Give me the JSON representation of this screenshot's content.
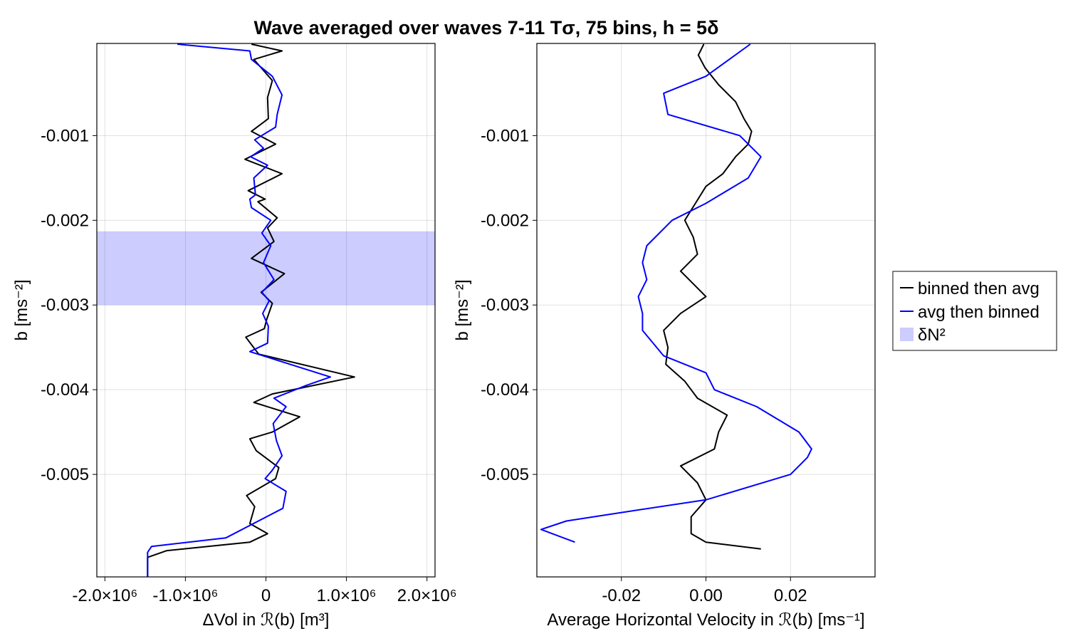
{
  "title": "Wave averaged over waves 7-11 Tσ, 75 bins, h = 5δ",
  "chart_data": [
    {
      "type": "line",
      "xlabel": "ΔVol in ℛ(b) [m³]",
      "ylabel": "b [ms⁻²]",
      "xlim": [
        -2100000,
        2100000
      ],
      "ylim": [
        -0.00621,
        8.8e-05
      ],
      "grid": true,
      "xticks": [
        -2000000,
        -1000000,
        0,
        1000000,
        2000000
      ],
      "xtick_labels": [
        "-2.0×10⁶",
        "-1.0×10⁶",
        "0",
        "1.0×10⁶",
        "2.0×10⁶"
      ],
      "yticks": [
        -0.001,
        -0.002,
        -0.003,
        -0.004,
        -0.005
      ],
      "ytick_labels": [
        "-0.001",
        "-0.002",
        "-0.003",
        "-0.004",
        "-0.005"
      ],
      "band": {
        "label": "δN²",
        "y_from": -0.003,
        "y_to": -0.00213,
        "color": "#ccccff"
      },
      "series": [
        {
          "name": "binned then avg",
          "color": "#000000",
          "points": [
            [
              -180000,
              8e-05
            ],
            [
              200000,
              0.0
            ],
            [
              -150000,
              -0.0001
            ],
            [
              80000,
              -0.00035
            ],
            [
              20000,
              -0.00055
            ],
            [
              30000,
              -0.0008
            ],
            [
              -180000,
              -0.00095
            ],
            [
              120000,
              -0.0011
            ],
            [
              -260000,
              -0.00128
            ],
            [
              200000,
              -0.00145
            ],
            [
              -220000,
              -0.00165
            ],
            [
              -10000,
              -0.00175
            ],
            [
              -100000,
              -0.00178
            ],
            [
              140000,
              -0.00197
            ],
            [
              20000,
              -0.00209
            ],
            [
              100000,
              -0.00225
            ],
            [
              -180000,
              -0.00245
            ],
            [
              230000,
              -0.00263
            ],
            [
              -60000,
              -0.00285
            ],
            [
              80000,
              -0.00298
            ],
            [
              10000,
              -0.00317
            ],
            [
              -20000,
              -0.00328
            ],
            [
              -250000,
              -0.00338
            ],
            [
              -90000,
              -0.00358
            ],
            [
              1100000,
              -0.00385
            ],
            [
              80000,
              -0.00405
            ],
            [
              -150000,
              -0.00415
            ],
            [
              420000,
              -0.00432
            ],
            [
              80000,
              -0.0045
            ],
            [
              -200000,
              -0.00458
            ],
            [
              -120000,
              -0.00472
            ],
            [
              160000,
              -0.00492
            ],
            [
              120000,
              -0.00505
            ],
            [
              -240000,
              -0.00525
            ],
            [
              -140000,
              -0.00538
            ],
            [
              -200000,
              -0.00558
            ],
            [
              20000,
              -0.0057
            ],
            [
              -200000,
              -0.0058
            ],
            [
              -1230000,
              -0.0059
            ],
            [
              -1470000,
              -0.00598
            ],
            [
              -1470000,
              -0.00621
            ]
          ]
        },
        {
          "name": "avg then binned",
          "color": "#0000ff",
          "points": [
            [
              -1100000,
              8e-05
            ],
            [
              -200000,
              0.0
            ],
            [
              -180000,
              -0.0001
            ],
            [
              80000,
              -0.0003
            ],
            [
              200000,
              -0.00052
            ],
            [
              140000,
              -0.00075
            ],
            [
              120000,
              -0.0009
            ],
            [
              -140000,
              -0.00105
            ],
            [
              -30000,
              -0.00115
            ],
            [
              -190000,
              -0.00125
            ],
            [
              20000,
              -0.00135
            ],
            [
              -150000,
              -0.0015
            ],
            [
              -130000,
              -0.0017
            ],
            [
              -200000,
              -0.00175
            ],
            [
              -180000,
              -0.00185
            ],
            [
              60000,
              -0.002
            ],
            [
              -50000,
              -0.00215
            ],
            [
              60000,
              -0.0023
            ],
            [
              -30000,
              -0.0025
            ],
            [
              100000,
              -0.0027
            ],
            [
              -50000,
              -0.00285
            ],
            [
              40000,
              -0.00295
            ],
            [
              -40000,
              -0.0031
            ],
            [
              30000,
              -0.00325
            ],
            [
              20000,
              -0.00345
            ],
            [
              -200000,
              -0.00355
            ],
            [
              800000,
              -0.00385
            ],
            [
              500000,
              -0.00395
            ],
            [
              100000,
              -0.0041
            ],
            [
              250000,
              -0.0042
            ],
            [
              90000,
              -0.0044
            ],
            [
              130000,
              -0.0046
            ],
            [
              200000,
              -0.00478
            ],
            [
              80000,
              -0.00495
            ],
            [
              -10000,
              -0.00505
            ],
            [
              250000,
              -0.0052
            ],
            [
              210000,
              -0.0054
            ],
            [
              -500000,
              -0.00575
            ],
            [
              -1420000,
              -0.00585
            ],
            [
              -1470000,
              -0.00592
            ],
            [
              -1470000,
              -0.00621
            ]
          ]
        }
      ]
    },
    {
      "type": "line",
      "xlabel": "Average Horizontal Velocity in ℛ(b) [ms⁻¹]",
      "ylabel": "b [ms⁻²]",
      "xlim": [
        -0.04,
        0.04
      ],
      "ylim": [
        -0.00621,
        8.8e-05
      ],
      "grid": true,
      "xticks": [
        -0.02,
        0.0,
        0.02
      ],
      "xtick_labels": [
        "-0.02",
        "0.00",
        "0.02"
      ],
      "yticks": [
        -0.001,
        -0.002,
        -0.003,
        -0.004,
        -0.005
      ],
      "ytick_labels": [
        "-0.001",
        "-0.002",
        "-0.003",
        "-0.004",
        "-0.005"
      ],
      "series": [
        {
          "name": "binned then avg",
          "color": "#000000",
          "points": [
            [
              -0.0005,
              8e-05
            ],
            [
              -0.0018,
              -5e-05
            ],
            [
              -0.0002,
              -0.0002
            ],
            [
              0.003,
              -0.0004
            ],
            [
              0.007,
              -0.0006
            ],
            [
              0.009,
              -0.0008
            ],
            [
              0.0108,
              -0.00095
            ],
            [
              0.01,
              -0.0011
            ],
            [
              0.007,
              -0.00125
            ],
            [
              0.004,
              -0.00145
            ],
            [
              0.0,
              -0.0016
            ],
            [
              -0.0025,
              -0.0018
            ],
            [
              -0.005,
              -0.002
            ],
            [
              -0.003,
              -0.0022
            ],
            [
              -0.002,
              -0.0024
            ],
            [
              -0.006,
              -0.0026
            ],
            [
              -0.004,
              -0.0027
            ],
            [
              0.0,
              -0.0029
            ],
            [
              -0.006,
              -0.0031
            ],
            [
              -0.01,
              -0.0033
            ],
            [
              -0.009,
              -0.0035
            ],
            [
              -0.0095,
              -0.0037
            ],
            [
              -0.005,
              -0.0039
            ],
            [
              -0.002,
              -0.0041
            ],
            [
              0.005,
              -0.0043
            ],
            [
              0.003,
              -0.0045
            ],
            [
              0.002,
              -0.0047
            ],
            [
              -0.006,
              -0.0049
            ],
            [
              -0.002,
              -0.0051
            ],
            [
              0.0,
              -0.0053
            ],
            [
              -0.0035,
              -0.0055
            ],
            [
              -0.0035,
              -0.0057
            ],
            [
              0.0,
              -0.0058
            ],
            [
              0.013,
              -0.00588
            ]
          ]
        },
        {
          "name": "avg then binned",
          "color": "#0000ff",
          "points": [
            [
              0.0105,
              8e-05
            ],
            [
              0.0,
              -0.0003
            ],
            [
              -0.01,
              -0.0005
            ],
            [
              -0.009,
              -0.00075
            ],
            [
              0.008,
              -0.001
            ],
            [
              0.013,
              -0.00125
            ],
            [
              0.01,
              -0.0015
            ],
            [
              0.0,
              -0.0018
            ],
            [
              -0.008,
              -0.002
            ],
            [
              -0.014,
              -0.0023
            ],
            [
              -0.015,
              -0.0025
            ],
            [
              -0.014,
              -0.0027
            ],
            [
              -0.016,
              -0.0029
            ],
            [
              -0.015,
              -0.0031
            ],
            [
              -0.015,
              -0.0033
            ],
            [
              -0.01,
              -0.0036
            ],
            [
              0.0,
              -0.0038
            ],
            [
              0.002,
              -0.004
            ],
            [
              0.012,
              -0.0042
            ],
            [
              0.022,
              -0.0045
            ],
            [
              0.025,
              -0.0047
            ],
            [
              0.024,
              -0.0048
            ],
            [
              0.02,
              -0.005
            ],
            [
              0.0,
              -0.0053
            ],
            [
              -0.02,
              -0.00545
            ],
            [
              -0.033,
              -0.00555
            ],
            [
              -0.039,
              -0.00565
            ],
            [
              -0.031,
              -0.0058
            ]
          ]
        }
      ]
    }
  ],
  "legend": {
    "placement": "right",
    "items": [
      {
        "label": "binned then avg",
        "color": "#000000",
        "kind": "line"
      },
      {
        "label": "avg then binned",
        "color": "#0000ff",
        "kind": "line"
      },
      {
        "label": "δN²",
        "color": "#ccccff",
        "kind": "patch"
      }
    ]
  }
}
